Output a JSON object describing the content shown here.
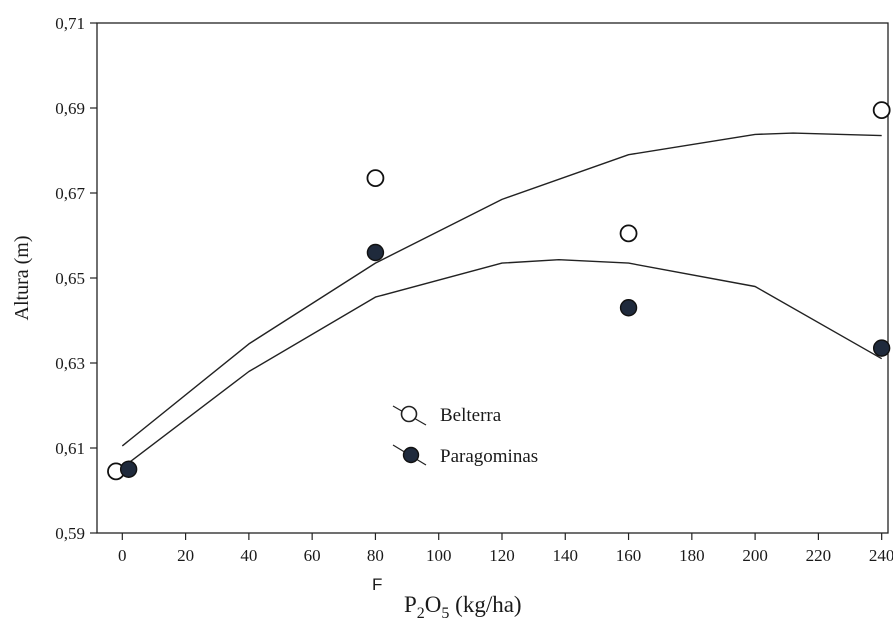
{
  "chart_data": {
    "type": "scatter",
    "xlabel_prefix": "F",
    "xlabel": "P2O5 (kg/ha)",
    "xlabel_parts": {
      "p": "P",
      "sub1": "2",
      "o": "O",
      "sub2": "5",
      "unit": " (kg/ha)"
    },
    "ylabel": "Altura (m)",
    "xlim": [
      -8,
      242
    ],
    "ylim": [
      0.59,
      0.71
    ],
    "xticks": [
      0,
      20,
      40,
      60,
      80,
      100,
      120,
      140,
      160,
      180,
      200,
      220,
      240
    ],
    "xtick_labels": [
      "0",
      "20",
      "40",
      "60",
      "80",
      "100",
      "120",
      "140",
      "160",
      "180",
      "200",
      "220",
      "240"
    ],
    "yticks": [
      0.59,
      0.61,
      0.63,
      0.65,
      0.67,
      0.69,
      0.71
    ],
    "ytick_labels": [
      "0,59",
      "0,61",
      "0,63",
      "0,65",
      "0,67",
      "0,69",
      "0,71"
    ],
    "grid": false,
    "legend_position": "center",
    "series": [
      {
        "name": "Belterra",
        "marker": "open-circle",
        "color": "#ffffff",
        "x": [
          -2,
          80,
          160,
          240
        ],
        "y": [
          0.6045,
          0.6735,
          0.6605,
          0.6895
        ],
        "fit": {
          "x": [
            0,
            40,
            80,
            120,
            160,
            200,
            212,
            240
          ],
          "y": [
            0.6105,
            0.6345,
            0.6535,
            0.6685,
            0.679,
            0.6838,
            0.6841,
            0.6835
          ]
        }
      },
      {
        "name": "Paragominas",
        "marker": "filled-circle",
        "color": "#1f2a3c",
        "x": [
          2,
          80,
          160,
          240
        ],
        "y": [
          0.605,
          0.656,
          0.643,
          0.6335
        ],
        "fit": {
          "x": [
            2,
            40,
            80,
            120,
            138,
            160,
            200,
            240
          ],
          "y": [
            0.6065,
            0.628,
            0.6455,
            0.6535,
            0.6543,
            0.6535,
            0.648,
            0.631
          ]
        }
      }
    ]
  }
}
